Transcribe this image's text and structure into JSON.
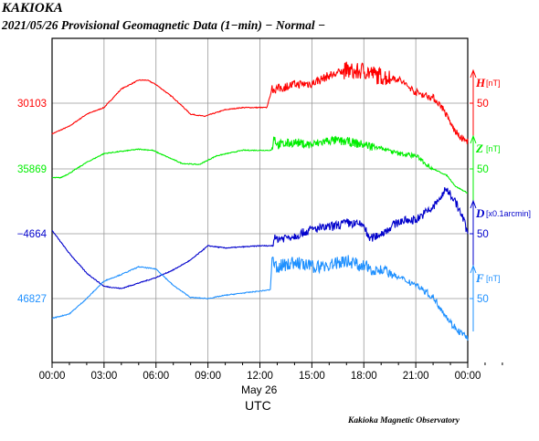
{
  "header": {
    "station": "KAKIOKA",
    "subtitle": "2021/05/26  Provisional Geomagnetic Data (1−min)  − Normal −"
  },
  "footer": {
    "credit": "Kakioka Magnetic Observatory"
  },
  "colors": {
    "H": "#ff0000",
    "Z": "#00ee00",
    "D": "#0000cc",
    "F": "#1e90ff",
    "grid": "#999999",
    "frame": "#000000"
  },
  "chart_data": {
    "type": "line",
    "date_label": "May 26",
    "xlabel": "UTC",
    "x_ticks": [
      "00:00",
      "03:00",
      "06:00",
      "09:00",
      "12:00",
      "15:00",
      "18:00",
      "21:00",
      "00:00"
    ],
    "xlim": [
      0,
      24
    ],
    "grid": true,
    "series": [
      {
        "name": "H",
        "unit": "[nT]",
        "left_label": "30103",
        "right_label": "50",
        "points": [
          [
            0,
            -28
          ],
          [
            1,
            -21
          ],
          [
            2,
            -10
          ],
          [
            3,
            -4
          ],
          [
            4,
            13
          ],
          [
            5,
            21
          ],
          [
            5.5,
            21
          ],
          [
            6,
            17
          ],
          [
            7,
            5
          ],
          [
            8,
            -10
          ],
          [
            8.8,
            -12
          ],
          [
            10,
            -6
          ],
          [
            11,
            -4
          ],
          [
            12.4,
            -4
          ],
          [
            12.7,
            13
          ],
          [
            13,
            13
          ],
          [
            14,
            17
          ],
          [
            15,
            18
          ],
          [
            16,
            25
          ],
          [
            17,
            30
          ],
          [
            17.5,
            28
          ],
          [
            18,
            30
          ],
          [
            18.8,
            25
          ],
          [
            20,
            22
          ],
          [
            21,
            10
          ],
          [
            22,
            5
          ],
          [
            22.5,
            -3
          ],
          [
            23.2,
            -24
          ],
          [
            23.6,
            -32
          ],
          [
            24,
            -35
          ]
        ],
        "wiggles": [
          [
            12.7,
            16.8,
            4
          ],
          [
            16.8,
            19.5,
            8
          ],
          [
            19.5,
            24,
            3
          ]
        ]
      },
      {
        "name": "Z",
        "unit": "[nT]",
        "left_label": "35869",
        "right_label": "50",
        "points": [
          [
            0,
            -8
          ],
          [
            0.5,
            -8
          ],
          [
            1,
            -4
          ],
          [
            2,
            6
          ],
          [
            3,
            14
          ],
          [
            4,
            16
          ],
          [
            5,
            18
          ],
          [
            5.8,
            17
          ],
          [
            6.5,
            12
          ],
          [
            7.5,
            5
          ],
          [
            8.5,
            4
          ],
          [
            9.5,
            12
          ],
          [
            11,
            17
          ],
          [
            12.7,
            17
          ],
          [
            12.8,
            30
          ],
          [
            13,
            22
          ],
          [
            14,
            24
          ],
          [
            15,
            22
          ],
          [
            16,
            26
          ],
          [
            17,
            25
          ],
          [
            18,
            22
          ],
          [
            19,
            19
          ],
          [
            20,
            14
          ],
          [
            21,
            12
          ],
          [
            22,
            0
          ],
          [
            22.8,
            -6
          ],
          [
            23.3,
            -16
          ],
          [
            24,
            -22
          ]
        ],
        "wiggles": [
          [
            12.7,
            18.5,
            4
          ],
          [
            18.5,
            22,
            2
          ]
        ]
      },
      {
        "name": "D",
        "unit": "[x0.1arcmin]",
        "left_label": "−4664",
        "right_label": "50",
        "points": [
          [
            0,
            3
          ],
          [
            1,
            -18
          ],
          [
            2,
            -36
          ],
          [
            3,
            -48
          ],
          [
            4,
            -50
          ],
          [
            5,
            -45
          ],
          [
            6,
            -40
          ],
          [
            7,
            -33
          ],
          [
            8,
            -24
          ],
          [
            9,
            -11
          ],
          [
            10,
            -13
          ],
          [
            11,
            -12
          ],
          [
            12,
            -11
          ],
          [
            12.7,
            -11
          ],
          [
            12.8,
            -5
          ],
          [
            14,
            -2
          ],
          [
            15,
            4
          ],
          [
            16,
            6
          ],
          [
            17,
            10
          ],
          [
            18,
            8
          ],
          [
            18.3,
            -5
          ],
          [
            19,
            0
          ],
          [
            20,
            11
          ],
          [
            21,
            13
          ],
          [
            22,
            24
          ],
          [
            22.8,
            41
          ],
          [
            23.3,
            29
          ],
          [
            23.8,
            11
          ],
          [
            24,
            0
          ]
        ],
        "wiggles": [
          [
            12.7,
            24,
            4
          ]
        ]
      },
      {
        "name": "F",
        "unit": "[nT]",
        "left_label": "46827",
        "right_label": "50",
        "points": [
          [
            0,
            -18
          ],
          [
            1,
            -14
          ],
          [
            2,
            0
          ],
          [
            3,
            16
          ],
          [
            4,
            22
          ],
          [
            5,
            29
          ],
          [
            6,
            27
          ],
          [
            7,
            12
          ],
          [
            8,
            1
          ],
          [
            9,
            0
          ],
          [
            10,
            3
          ],
          [
            11,
            5
          ],
          [
            12.6,
            8
          ],
          [
            12.7,
            34
          ],
          [
            13,
            29
          ],
          [
            14,
            33
          ],
          [
            15,
            29
          ],
          [
            16,
            30
          ],
          [
            17,
            35
          ],
          [
            18,
            29
          ],
          [
            19,
            26
          ],
          [
            20,
            19
          ],
          [
            21,
            13
          ],
          [
            22,
            1
          ],
          [
            22.5,
            -10
          ],
          [
            23,
            -22
          ],
          [
            23.5,
            -30
          ],
          [
            24,
            -36
          ]
        ],
        "wiggles": [
          [
            12.7,
            19.5,
            6
          ],
          [
            19.5,
            24,
            3
          ]
        ]
      }
    ]
  }
}
